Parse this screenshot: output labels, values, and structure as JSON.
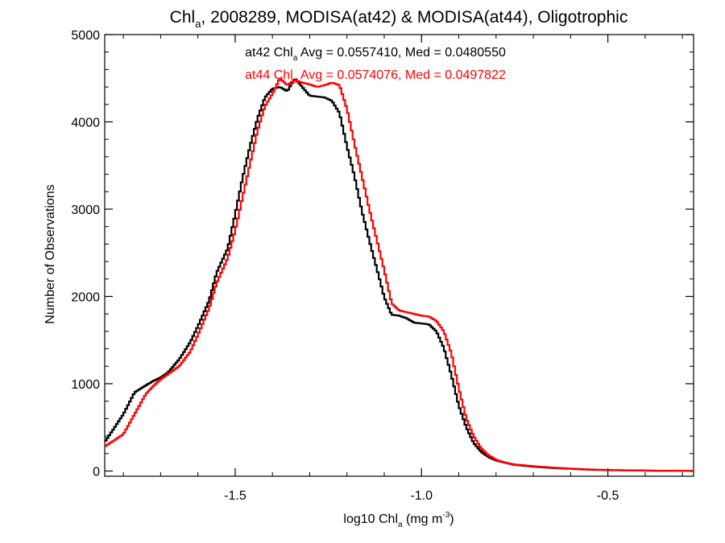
{
  "chart_data": {
    "type": "line",
    "title_main": "Chl",
    "title_sub": "a",
    "title_rest": ", 2008289, MODISA(at42) & MODISA(at44), Oligotrophic",
    "xlabel_main": "log10 Chl",
    "xlabel_sub": "a",
    "xlabel_unit": " (mg m",
    "xlabel_sup": "-3",
    "xlabel_close": ")",
    "ylabel": "Number of Observations",
    "xlim": [
      -1.85,
      -0.27
    ],
    "ylim": [
      -60,
      5000
    ],
    "xticks": [
      -1.5,
      -1.0,
      -0.5
    ],
    "xtick_labels": [
      "-1.5",
      "-1.0",
      "-0.5"
    ],
    "yticks": [
      0,
      1000,
      2000,
      3000,
      4000,
      5000
    ],
    "ytick_labels": [
      "0",
      "1000",
      "2000",
      "3000",
      "4000",
      "5000"
    ],
    "annotations": [
      {
        "prefix": "at42 Chl",
        "sub": "a",
        "suffix": " Avg = 0.0557410, Med = 0.0480550",
        "color": "#000000"
      },
      {
        "prefix": "at44 Chl",
        "sub": "a",
        "suffix": " Avg = 0.0574076, Med = 0.0497822",
        "color": "#ff0000"
      }
    ],
    "series": [
      {
        "color": "#000000",
        "x": [
          -1.85,
          -1.8,
          -1.77,
          -1.74,
          -1.72,
          -1.7,
          -1.68,
          -1.65,
          -1.62,
          -1.6,
          -1.57,
          -1.55,
          -1.52,
          -1.5,
          -1.48,
          -1.46,
          -1.44,
          -1.42,
          -1.4,
          -1.38,
          -1.36,
          -1.34,
          -1.32,
          -1.3,
          -1.28,
          -1.26,
          -1.24,
          -1.22,
          -1.2,
          -1.18,
          -1.16,
          -1.14,
          -1.12,
          -1.1,
          -1.08,
          -1.06,
          -1.04,
          -1.02,
          -1.0,
          -0.98,
          -0.96,
          -0.94,
          -0.92,
          -0.9,
          -0.88,
          -0.86,
          -0.84,
          -0.82,
          -0.8,
          -0.78,
          -0.75,
          -0.7,
          -0.65,
          -0.6,
          -0.55,
          -0.5,
          -0.45,
          -0.4,
          -0.35,
          -0.3,
          -0.27
        ],
        "y": [
          330,
          650,
          900,
          980,
          1030,
          1070,
          1130,
          1280,
          1480,
          1660,
          1950,
          2270,
          2550,
          2940,
          3360,
          3720,
          4040,
          4280,
          4380,
          4400,
          4350,
          4500,
          4400,
          4300,
          4290,
          4280,
          4240,
          4100,
          3720,
          3380,
          2980,
          2640,
          2320,
          1990,
          1790,
          1780,
          1750,
          1700,
          1690,
          1680,
          1600,
          1410,
          1100,
          750,
          500,
          320,
          220,
          160,
          120,
          100,
          70,
          50,
          35,
          25,
          15,
          10,
          8,
          5,
          3,
          2,
          0
        ]
      },
      {
        "color": "#ff0000",
        "x": [
          -1.85,
          -1.8,
          -1.77,
          -1.74,
          -1.72,
          -1.7,
          -1.68,
          -1.65,
          -1.62,
          -1.6,
          -1.57,
          -1.55,
          -1.52,
          -1.5,
          -1.48,
          -1.46,
          -1.44,
          -1.42,
          -1.4,
          -1.38,
          -1.36,
          -1.34,
          -1.32,
          -1.3,
          -1.28,
          -1.26,
          -1.24,
          -1.22,
          -1.2,
          -1.18,
          -1.16,
          -1.14,
          -1.12,
          -1.1,
          -1.08,
          -1.06,
          -1.04,
          -1.02,
          -1.0,
          -0.98,
          -0.96,
          -0.94,
          -0.92,
          -0.9,
          -0.88,
          -0.86,
          -0.84,
          -0.82,
          -0.8,
          -0.78,
          -0.75,
          -0.7,
          -0.65,
          -0.6,
          -0.55,
          -0.5,
          -0.45,
          -0.4,
          -0.35,
          -0.3,
          -0.27
        ],
        "y": [
          280,
          420,
          650,
          880,
          970,
          1050,
          1110,
          1200,
          1370,
          1560,
          1860,
          2150,
          2440,
          2750,
          3140,
          3520,
          3900,
          4180,
          4320,
          4500,
          4420,
          4480,
          4450,
          4430,
          4400,
          4420,
          4450,
          4420,
          4150,
          3750,
          3380,
          3000,
          2650,
          2300,
          1920,
          1840,
          1820,
          1800,
          1780,
          1770,
          1720,
          1600,
          1350,
          950,
          600,
          400,
          260,
          180,
          130,
          100,
          75,
          55,
          40,
          28,
          18,
          12,
          8,
          5,
          3,
          2,
          0
        ]
      }
    ]
  }
}
